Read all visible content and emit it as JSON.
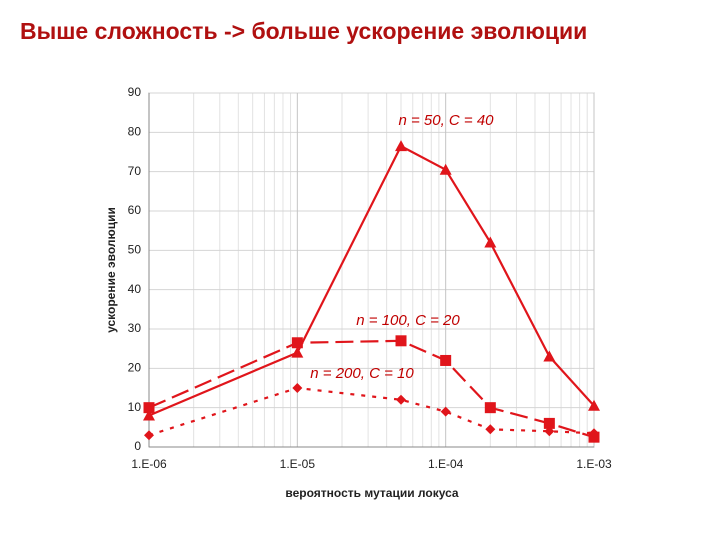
{
  "chart_data": {
    "type": "line",
    "title": "Выше сложность -> больше ускорение эволюции",
    "x_label": "вероятность мутации локуса",
    "y_label": "ускорение эволюции",
    "x": [
      1e-06,
      1e-05,
      5e-05,
      0.0001,
      0.0002,
      0.0005,
      0.001
    ],
    "series": [
      {
        "name": "n = 50, C = 40",
        "color": "#e0151b",
        "line_style": "solid",
        "marker": "triangle",
        "values": [
          8,
          24,
          76.5,
          70.5,
          52,
          23,
          10.5
        ]
      },
      {
        "name": "n = 100, C = 20",
        "color": "#e0151b",
        "line_style": "dashed",
        "marker": "square",
        "values": [
          10,
          26.5,
          27,
          22,
          10,
          6,
          2.5
        ]
      },
      {
        "name": "n = 200, C = 10",
        "color": "#e0151b",
        "line_style": "dotted",
        "marker": "diamond",
        "values": [
          3,
          15,
          12,
          9,
          4.5,
          4,
          3.5
        ]
      }
    ],
    "x_scale": "log",
    "xlim": [
      1e-06,
      0.001
    ],
    "xticks": [
      {
        "value": 1e-06,
        "label": "1.E-06"
      },
      {
        "value": 1e-05,
        "label": "1.E-05"
      },
      {
        "value": 0.0001,
        "label": "1.E-04"
      },
      {
        "value": 0.001,
        "label": "1.E-03"
      }
    ],
    "ylim": [
      0,
      90
    ],
    "yticks": [
      0,
      10,
      20,
      30,
      40,
      50,
      60,
      70,
      80,
      90
    ],
    "grid": true
  }
}
